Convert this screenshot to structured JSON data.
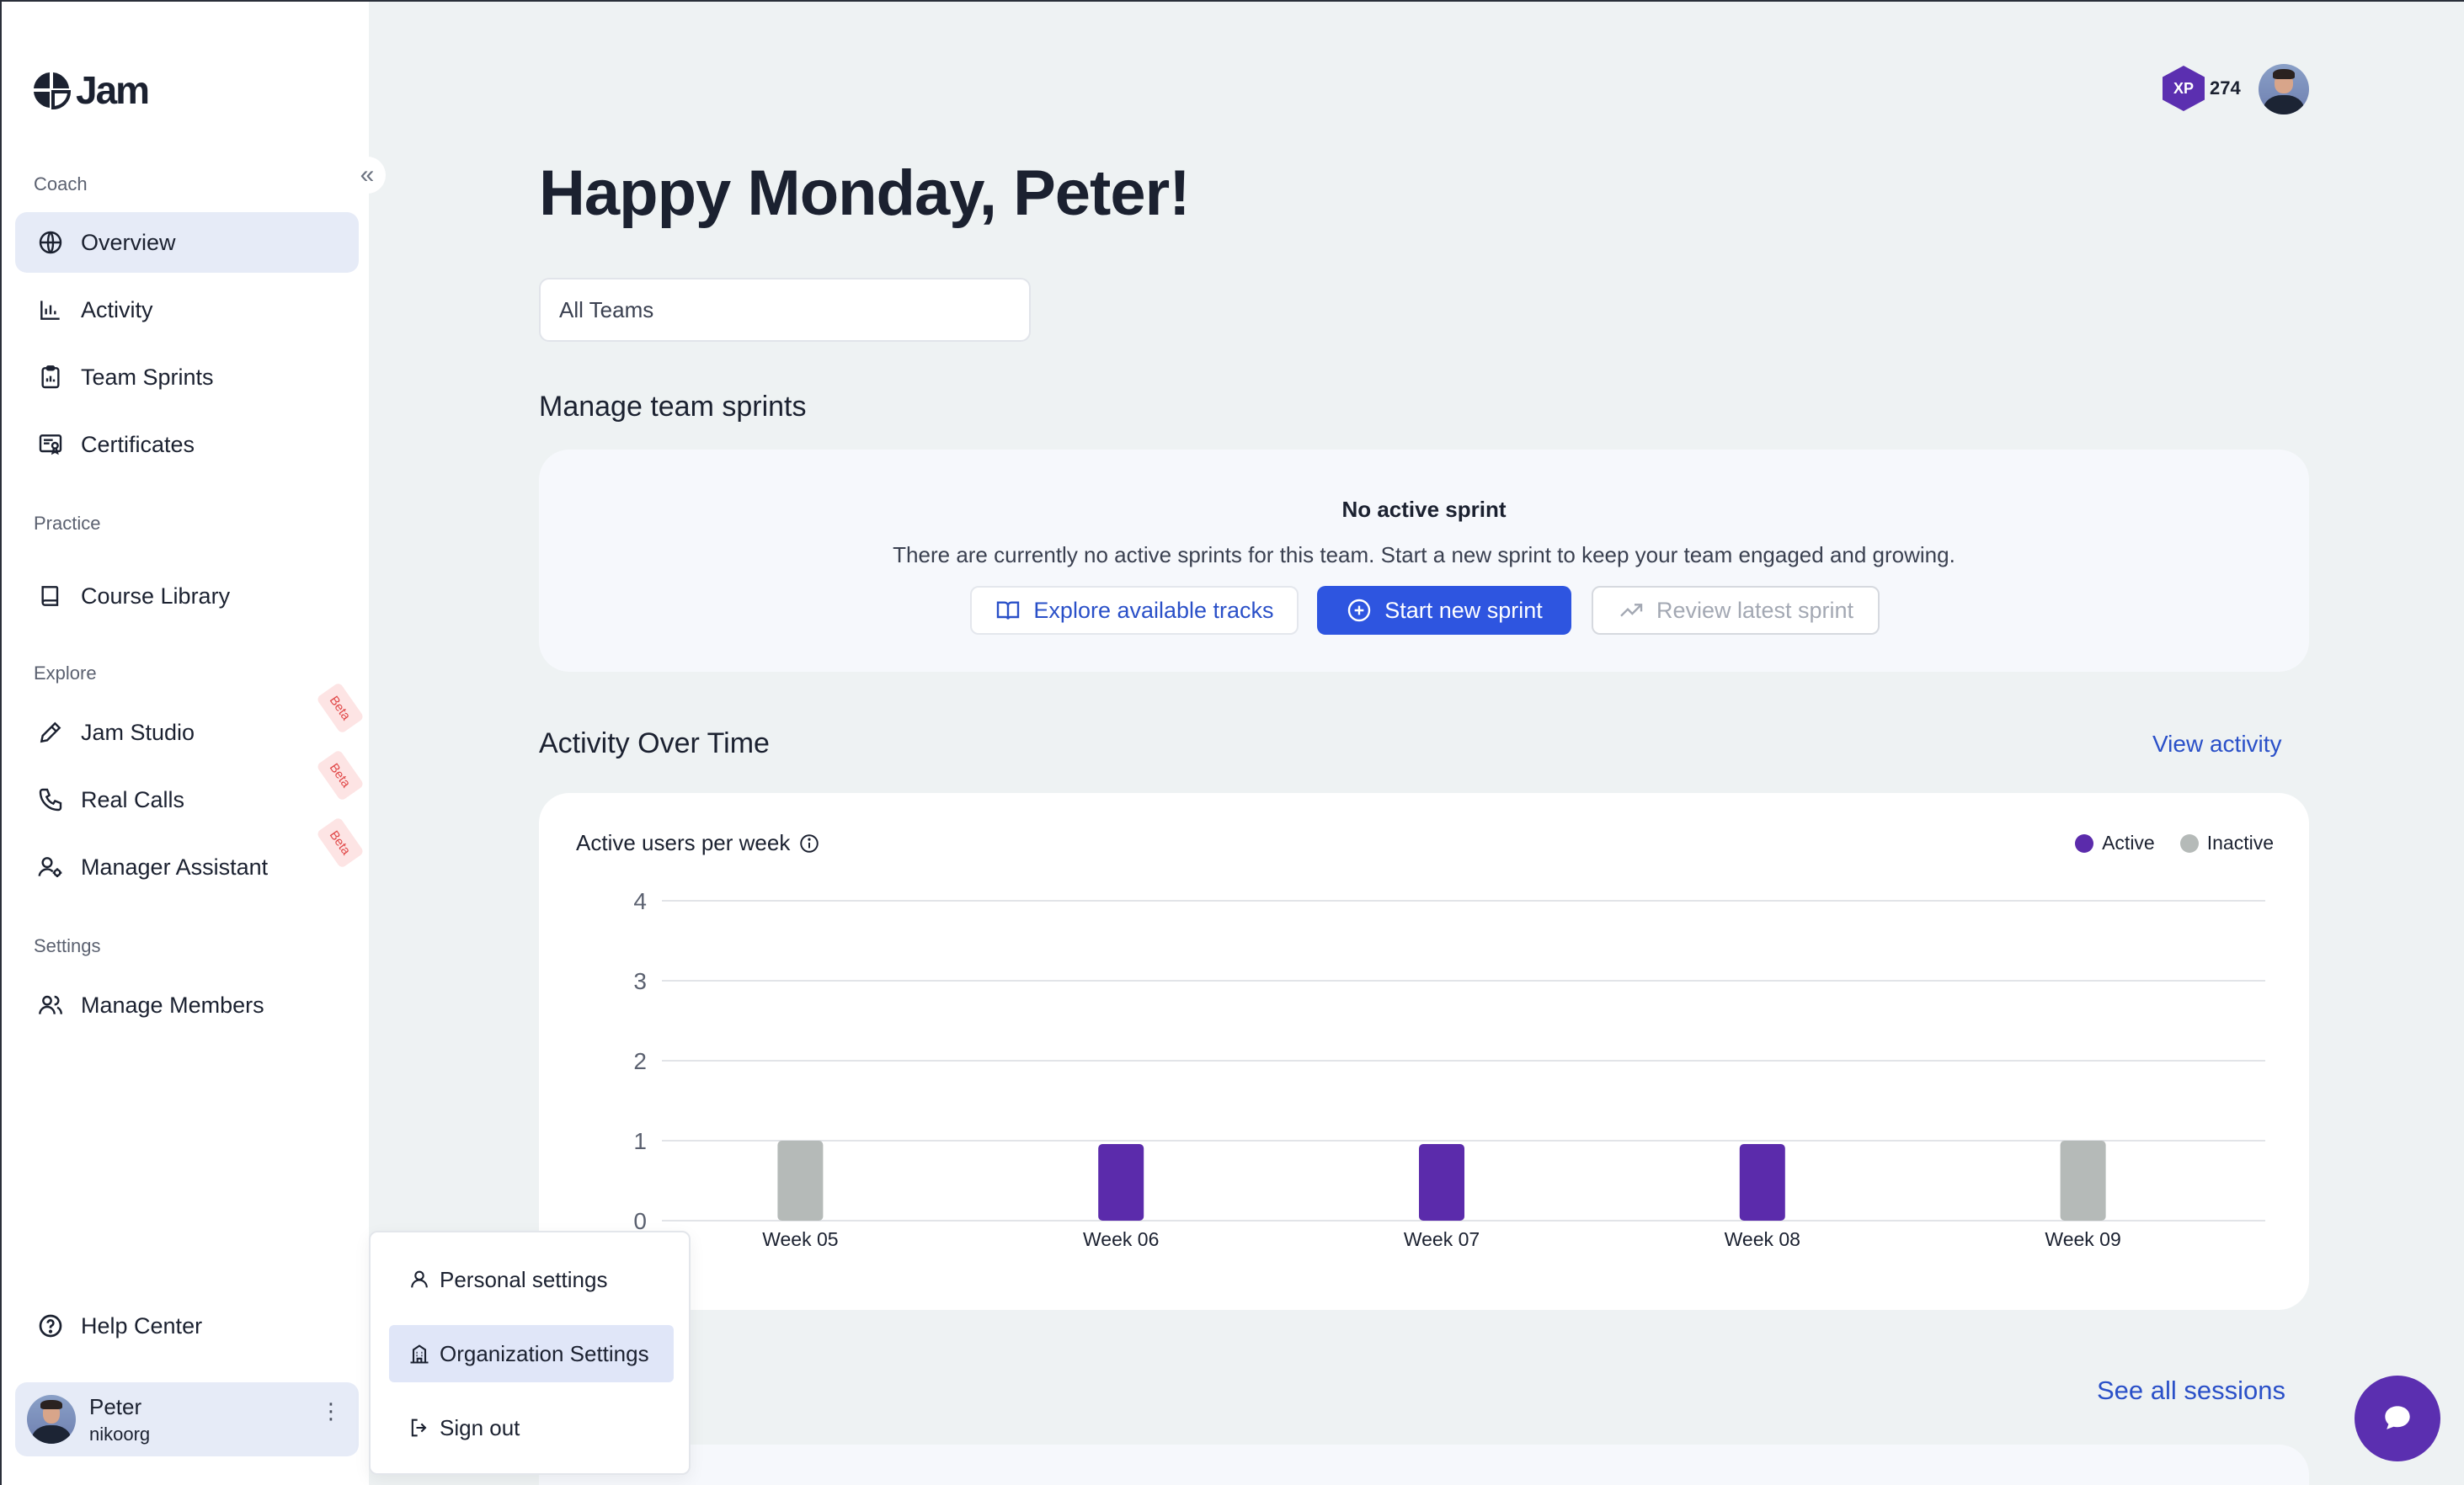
{
  "app": {
    "name": "Jam"
  },
  "sidebar": {
    "sections": [
      {
        "label": "Coach"
      },
      {
        "label": "Practice"
      },
      {
        "label": "Explore"
      },
      {
        "label": "Settings"
      }
    ],
    "items": [
      {
        "label": "Overview",
        "icon": "globe-icon",
        "active": true
      },
      {
        "label": "Activity",
        "icon": "bar-chart-icon"
      },
      {
        "label": "Team Sprints",
        "icon": "clipboard-icon"
      },
      {
        "label": "Certificates",
        "icon": "certificate-icon"
      },
      {
        "label": "Course Library",
        "icon": "book-icon"
      },
      {
        "label": "Jam Studio",
        "icon": "pencil-icon",
        "badge": "Beta"
      },
      {
        "label": "Real Calls",
        "icon": "phone-icon",
        "badge": "Beta"
      },
      {
        "label": "Manager Assistant",
        "icon": "user-gear-icon",
        "badge": "Beta"
      },
      {
        "label": "Manage Members",
        "icon": "users-icon"
      },
      {
        "label": "Help Center",
        "icon": "help-circle-icon"
      }
    ],
    "user": {
      "name": "Peter",
      "org": "nikoorg"
    }
  },
  "user_menu": {
    "items": [
      {
        "label": "Personal settings",
        "icon": "user-icon"
      },
      {
        "label": "Organization Settings",
        "icon": "building-icon",
        "highlighted": true
      },
      {
        "label": "Sign out",
        "icon": "sign-out-icon"
      }
    ]
  },
  "header": {
    "xp_label": "XP",
    "xp_value": "274"
  },
  "main": {
    "greeting": "Happy Monday, Peter!",
    "team_filter": "All Teams",
    "sprints": {
      "heading": "Manage team sprints",
      "empty_title": "No active sprint",
      "empty_desc": "There are currently no active sprints for this team. Start a new sprint to keep your team engaged and growing.",
      "explore_label": "Explore available tracks",
      "start_label": "Start new sprint",
      "review_label": "Review latest sprint"
    },
    "activity": {
      "heading": "Activity Over Time",
      "view_link": "View activity",
      "chart_title": "Active users per week"
    },
    "sessions": {
      "see_all_link": "See all sessions"
    }
  },
  "colors": {
    "active": "#5b2bab",
    "inactive": "#b5bab8",
    "primary": "#2e55e0",
    "link": "#2a50c8"
  },
  "chart_data": {
    "type": "bar",
    "title": "Active users per week",
    "categories": [
      "Week 05",
      "Week 06",
      "Week 07",
      "Week 08",
      "Week 09"
    ],
    "series": [
      {
        "name": "Active",
        "values": [
          0,
          1,
          1,
          1,
          0
        ]
      },
      {
        "name": "Inactive",
        "values": [
          1,
          0,
          0,
          0,
          1
        ]
      }
    ],
    "ylim": [
      0,
      4
    ],
    "yticks": [
      0,
      1,
      2,
      3,
      4
    ],
    "grid": true,
    "legend": "top-right"
  }
}
